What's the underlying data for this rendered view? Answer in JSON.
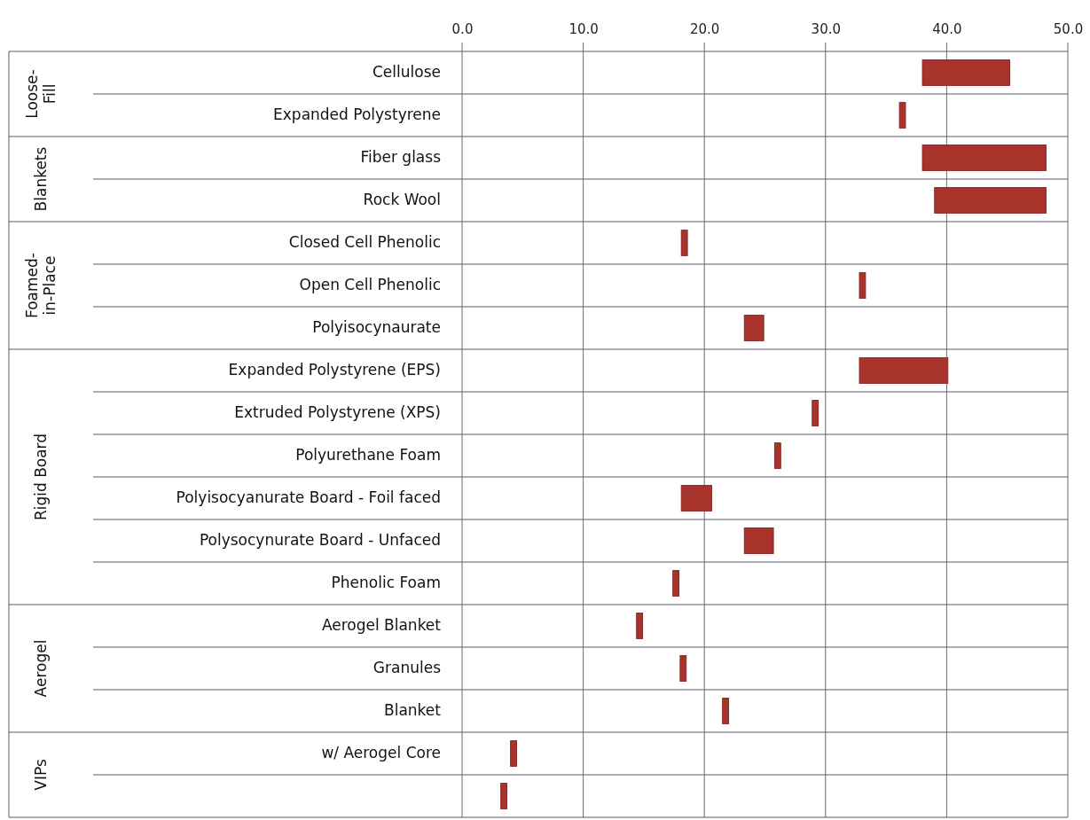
{
  "chart_data": {
    "type": "bar",
    "orientation": "horizontal",
    "categories": [
      "Cellulose",
      "Expanded Polystyrene",
      "Fiber glass",
      "Rock Wool",
      "Closed Cell Phenolic",
      "Open Cell Phenolic",
      "Polyisocynaurate",
      "Expanded Polystyrene (EPS)",
      "Extruded Polystyrene (XPS)",
      "Polyurethane Foam",
      "Polyisocyanurate Board - Foil faced",
      "Polysocynurate Board - Unfaced",
      "Phenolic Foam",
      "Aerogel Blanket",
      "Granules",
      "Blanket",
      "w/ Aerogel Core",
      null
    ],
    "base": [
      38,
      36.1,
      38,
      39,
      18.1,
      32.8,
      23.3,
      32.8,
      28.9,
      25.8,
      18.1,
      23.3,
      17.4,
      14.4,
      18,
      21.5,
      4,
      3.2
    ],
    "values": [
      7.2,
      0.5,
      10.2,
      9.2,
      0.5,
      0.5,
      1.6,
      7.3,
      0.5,
      0.5,
      2.5,
      2.4,
      0.5,
      0.5,
      0.5,
      0.5,
      0.5,
      0.5
    ],
    "color": "#a8322c",
    "xlim": [
      0,
      50
    ],
    "xticks": [
      {
        "value": 0,
        "label": "0.0"
      },
      {
        "value": 10,
        "label": "10.0"
      },
      {
        "value": 20,
        "label": "20.0"
      },
      {
        "value": 30,
        "label": "30.0"
      },
      {
        "value": 40,
        "label": "40.0"
      },
      {
        "value": 50,
        "label": "50.0"
      }
    ],
    "grid": true,
    "annotations": [
      "Loose-Fill",
      "Blankets",
      "Foamed-in-Place",
      "Rigid Board",
      "Aerogel",
      "VIPs"
    ]
  }
}
